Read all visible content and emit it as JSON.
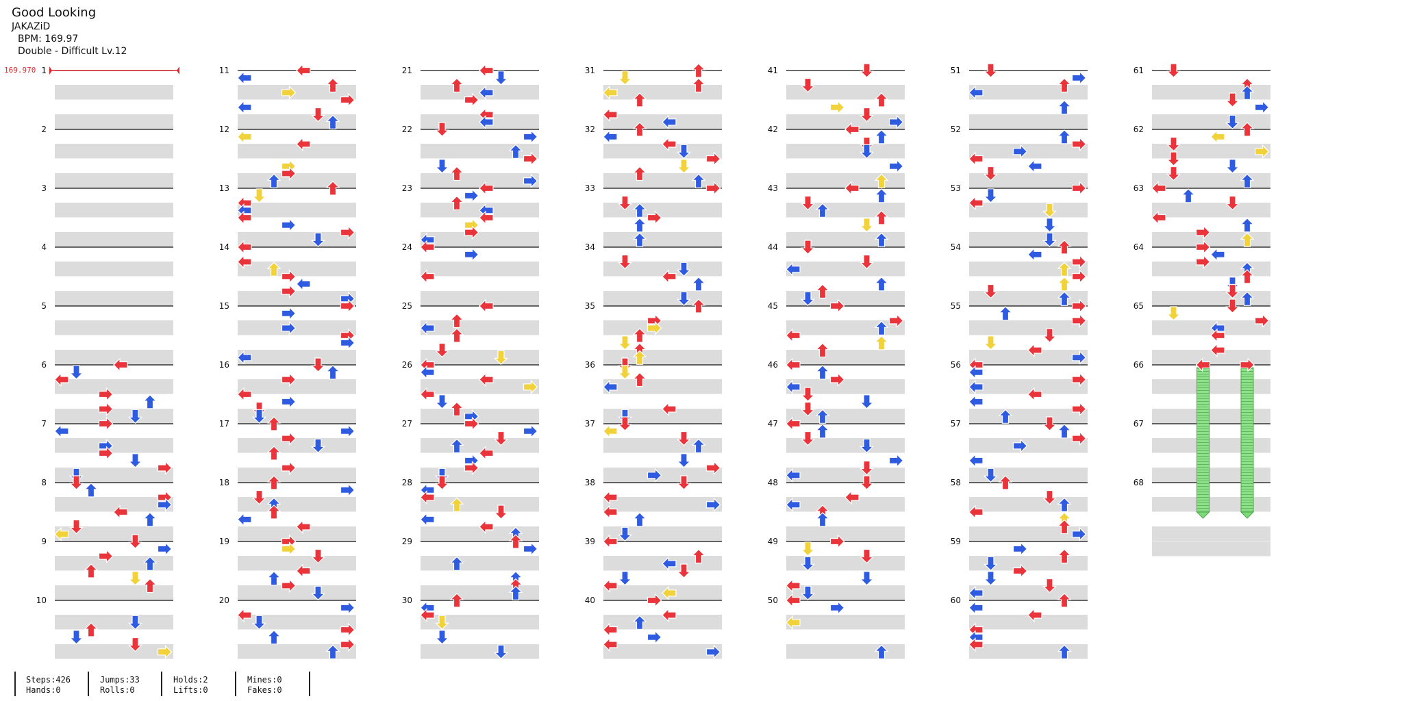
{
  "header": {
    "title": "Good Looking",
    "artist": "JAKAZiD",
    "bpm": "BPM: 169.97",
    "difficulty": "Double - Difficult Lv.12",
    "bpm_change": "169.970"
  },
  "measures": [
    "1",
    "2",
    "3",
    "4",
    "5",
    "6",
    "7",
    "8",
    "9",
    "10",
    "11",
    "12",
    "13",
    "14",
    "15",
    "16",
    "17",
    "18",
    "19",
    "20",
    "21",
    "22",
    "23",
    "24",
    "25",
    "26",
    "27",
    "28",
    "29",
    "30",
    "31",
    "32",
    "33",
    "34",
    "35",
    "36",
    "37",
    "38",
    "39",
    "40",
    "41",
    "42",
    "43",
    "44",
    "45",
    "46",
    "47",
    "48",
    "49",
    "50",
    "51",
    "52",
    "53",
    "54",
    "55",
    "56",
    "57",
    "58",
    "59",
    "60",
    "61",
    "62",
    "63",
    "64",
    "65",
    "66",
    "67",
    "68"
  ],
  "colors": {
    "quarter": "#e8343a",
    "eighth": "#2f5be0",
    "sixteenth": "#f2d23a",
    "hold": "#7fd97a",
    "band": "#dcdcdc"
  },
  "stats": {
    "steps": "Steps:426",
    "hands": "Hands:0",
    "jumps": "Jumps:33",
    "rolls": "Rolls:0",
    "holds": "Holds:2",
    "lifts": "Lifts:0",
    "mines": "Mines:0",
    "fakes": "Fakes:0"
  }
}
